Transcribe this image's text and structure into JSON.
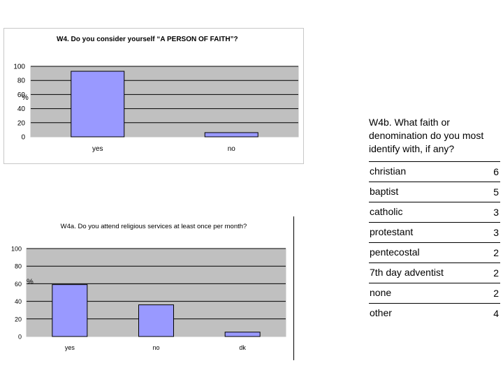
{
  "chart_data": [
    {
      "type": "bar",
      "title": "W4.   Do you consider yourself  “A PERSON OF FAITH”?",
      "ylabel": "%",
      "categories": [
        "yes",
        "no"
      ],
      "values": [
        93,
        6
      ],
      "ylim": [
        0,
        100
      ],
      "yticks": [
        "0",
        "20",
        "40",
        "60",
        "80",
        "100"
      ],
      "bar_color": "#9999ff",
      "plot_bg": "#c0c0c0",
      "grid": true
    },
    {
      "type": "bar",
      "title": "W4a. Do you attend religious services at least once per month?",
      "ylabel": "%",
      "categories": [
        "yes",
        "no",
        "dk"
      ],
      "values": [
        59,
        36,
        5
      ],
      "ylim": [
        0,
        100
      ],
      "yticks": [
        "0",
        "20",
        "40",
        "60",
        "80",
        "100"
      ],
      "bar_color": "#9999ff",
      "plot_bg": "#c0c0c0",
      "grid": true
    },
    {
      "type": "table",
      "title": "W4b. What faith or denomination do you most identify with, if any?",
      "rows": [
        {
          "label": "christian",
          "value": "6"
        },
        {
          "label": "baptist",
          "value": "5"
        },
        {
          "label": "catholic",
          "value": "3"
        },
        {
          "label": "protestant",
          "value": "3"
        },
        {
          "label": "pentecostal",
          "value": "2"
        },
        {
          "label": "7th day adventist",
          "value": "2"
        },
        {
          "label": "none",
          "value": "2"
        },
        {
          "label": "other",
          "value": "4"
        }
      ]
    }
  ]
}
